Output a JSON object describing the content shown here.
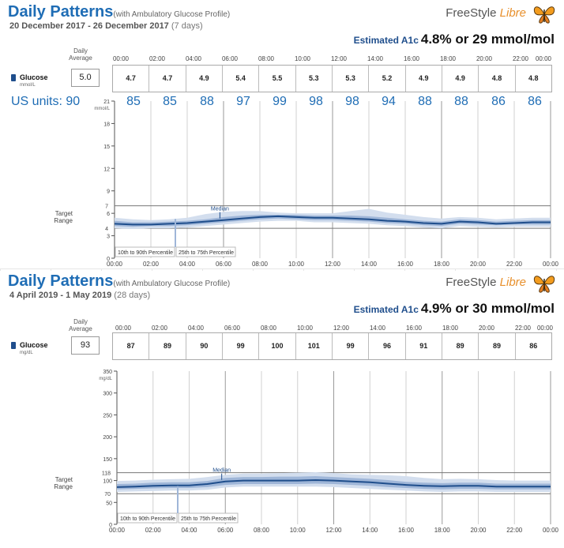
{
  "brand": {
    "name_a": "FreeStyle",
    "name_b": "Libre"
  },
  "common": {
    "title": "Daily Patterns",
    "subtitle": "(with Ambulatory Glucose Profile)",
    "estimated_label": "Estimated A1c",
    "daily_avg_label": [
      "Daily",
      "Average"
    ],
    "glucose_label": "Glucose",
    "median_label": "Median",
    "legend_outer": "10th to 90th Percentile",
    "legend_inner": "25th to 75th Percentile",
    "target_label": [
      "Target",
      "Range"
    ],
    "times": [
      "00:00",
      "02:00",
      "04:00",
      "06:00",
      "08:00",
      "10:00",
      "12:00",
      "14:00",
      "16:00",
      "18:00",
      "20:00",
      "22:00",
      "00:00"
    ]
  },
  "panels": [
    {
      "dates": "20 December 2017 - 26 December 2017",
      "days": "(7 days)",
      "a1c": "4.8% or 29 mmol/mol",
      "unit": "mmol/L",
      "daily_avg": "5.0",
      "hourly": [
        "4.7",
        "4.7",
        "4.9",
        "5.4",
        "5.5",
        "5.3",
        "5.3",
        "5.2",
        "4.9",
        "4.9",
        "4.8",
        "4.8"
      ],
      "us": {
        "label": "US units:",
        "avg": "90",
        "values": [
          "85",
          "85",
          "88",
          "97",
          "99",
          "98",
          "98",
          "94",
          "88",
          "88",
          "86",
          "86"
        ]
      }
    },
    {
      "dates": "4 April 2019 - 1 May 2019",
      "days": "(28 days)",
      "a1c": "4.9% or 30 mmol/mol",
      "unit": "mg/dL",
      "daily_avg": "93",
      "hourly": [
        "87",
        "89",
        "90",
        "99",
        "100",
        "101",
        "99",
        "96",
        "91",
        "89",
        "89",
        "86"
      ]
    }
  ],
  "chart_data": [
    {
      "type": "area",
      "title": "Daily Patterns",
      "ylabel": "mmol/L",
      "ylim": [
        0,
        21
      ],
      "yticks": [
        "0",
        "3",
        "6",
        "9",
        "12",
        "15",
        "18",
        "21"
      ],
      "target": [
        "4",
        "7"
      ],
      "x": [
        0,
        1,
        2,
        3,
        4,
        5,
        6,
        7,
        8,
        9,
        10,
        11,
        12,
        13,
        14,
        15,
        16,
        17,
        18,
        19,
        20,
        21,
        22,
        23,
        24
      ],
      "series": [
        {
          "name": "Median",
          "values": [
            4.6,
            4.5,
            4.5,
            4.6,
            4.7,
            4.9,
            5.1,
            5.3,
            5.5,
            5.6,
            5.5,
            5.4,
            5.4,
            5.3,
            5.2,
            5.0,
            4.9,
            4.7,
            4.6,
            4.9,
            4.8,
            4.6,
            4.7,
            4.8,
            4.8
          ]
        },
        {
          "name": "25th to 75th Percentile",
          "lower": [
            4.3,
            4.2,
            4.3,
            4.3,
            4.4,
            4.6,
            4.8,
            5.0,
            5.2,
            5.3,
            5.2,
            5.1,
            5.1,
            5.0,
            4.9,
            4.7,
            4.6,
            4.4,
            4.3,
            4.6,
            4.5,
            4.4,
            4.5,
            4.5,
            4.5
          ],
          "upper": [
            5.0,
            4.8,
            4.8,
            4.9,
            5.0,
            5.2,
            5.5,
            5.7,
            5.8,
            5.8,
            5.8,
            5.7,
            5.7,
            5.7,
            5.6,
            5.4,
            5.2,
            5.0,
            4.9,
            5.2,
            5.1,
            4.9,
            5.0,
            5.1,
            5.1
          ]
        },
        {
          "name": "10th to 90th Percentile",
          "lower": [
            4.0,
            3.9,
            4.0,
            4.0,
            4.1,
            4.3,
            4.5,
            4.7,
            4.9,
            5.0,
            5.0,
            4.8,
            4.8,
            4.7,
            4.6,
            4.4,
            4.3,
            4.1,
            4.0,
            4.3,
            4.2,
            4.1,
            4.2,
            4.2,
            4.2
          ],
          "upper": [
            5.4,
            5.2,
            5.1,
            5.2,
            5.4,
            5.9,
            6.2,
            6.3,
            6.3,
            6.1,
            6.0,
            6.0,
            6.0,
            6.3,
            6.6,
            6.1,
            5.8,
            5.5,
            5.3,
            5.5,
            5.4,
            5.2,
            5.3,
            5.4,
            5.4
          ]
        }
      ]
    },
    {
      "type": "area",
      "title": "Daily Patterns",
      "ylabel": "mg/dL",
      "ylim": [
        0,
        350
      ],
      "yticks": [
        "0",
        "50",
        "100",
        "150",
        "200",
        "250",
        "300",
        "350"
      ],
      "target": [
        "70",
        "118"
      ],
      "x": [
        0,
        1,
        2,
        3,
        4,
        5,
        6,
        7,
        8,
        9,
        10,
        11,
        12,
        13,
        14,
        15,
        16,
        17,
        18,
        19,
        20,
        21,
        22,
        23,
        24
      ],
      "series": [
        {
          "name": "Median",
          "values": [
            85,
            86,
            88,
            89,
            89,
            92,
            98,
            100,
            100,
            100,
            100,
            101,
            100,
            98,
            96,
            93,
            90,
            88,
            87,
            88,
            88,
            86,
            86,
            86,
            86
          ]
        },
        {
          "name": "25th to 75th Percentile",
          "lower": [
            80,
            81,
            82,
            83,
            83,
            85,
            90,
            92,
            92,
            92,
            92,
            93,
            92,
            90,
            88,
            85,
            83,
            81,
            80,
            81,
            81,
            80,
            80,
            80,
            80
          ],
          "upper": [
            92,
            93,
            95,
            96,
            96,
            99,
            106,
            108,
            108,
            109,
            109,
            110,
            108,
            106,
            104,
            101,
            97,
            95,
            94,
            95,
            95,
            93,
            93,
            93,
            93
          ]
        },
        {
          "name": "10th to 90th Percentile",
          "lower": [
            74,
            75,
            76,
            77,
            77,
            79,
            84,
            86,
            86,
            86,
            86,
            86,
            85,
            83,
            81,
            79,
            77,
            75,
            74,
            75,
            75,
            74,
            74,
            74,
            74
          ],
          "upper": [
            99,
            100,
            102,
            103,
            104,
            108,
            113,
            116,
            116,
            117,
            118,
            119,
            117,
            114,
            113,
            112,
            110,
            106,
            103,
            104,
            103,
            101,
            100,
            100,
            100
          ]
        }
      ]
    }
  ]
}
